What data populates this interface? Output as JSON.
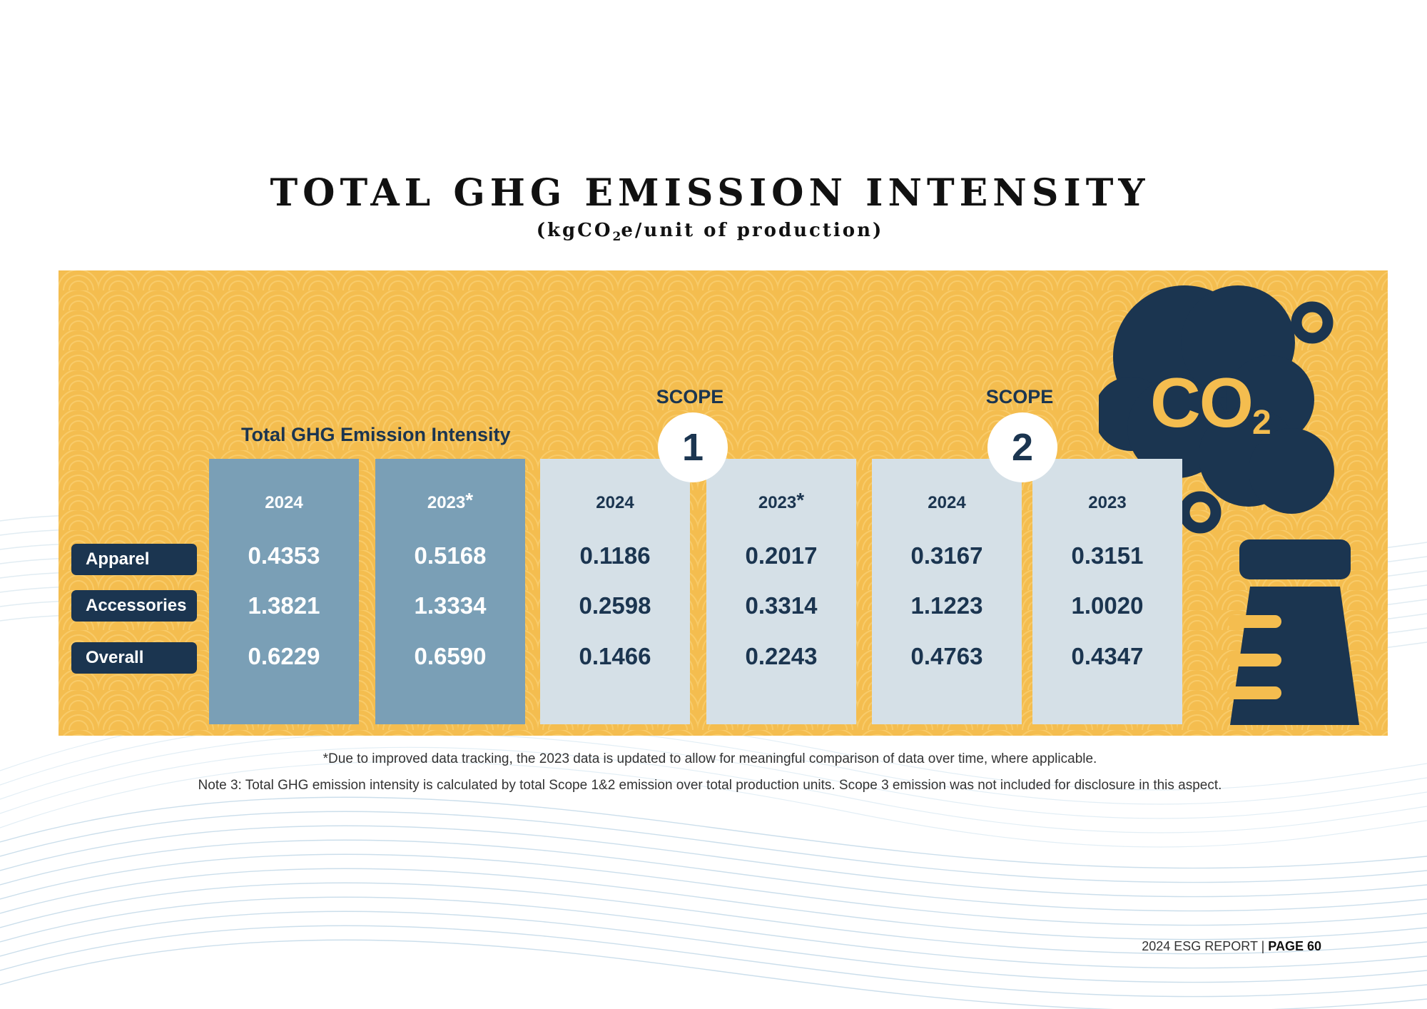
{
  "page": {
    "title": "TOTAL GHG EMISSION INTENSITY",
    "subtitle_prefix": "(kgCO",
    "subtitle_sub": "2",
    "subtitle_suffix": "e/unit of production)"
  },
  "table": {
    "heading": "Total GHG Emission Intensity",
    "row_labels": [
      "Apparel",
      "Accessories",
      "Overall"
    ],
    "scopes": [
      {
        "label": "SCOPE",
        "number": "1"
      },
      {
        "label": "SCOPE",
        "number": "2"
      }
    ],
    "columns": [
      {
        "group": "total",
        "year": "2024",
        "star": "",
        "values": [
          "0.4353",
          "1.3821",
          "0.6229"
        ]
      },
      {
        "group": "total",
        "year": "2023",
        "star": "*",
        "values": [
          "0.5168",
          "1.3334",
          "0.6590"
        ]
      },
      {
        "group": "scope1",
        "year": "2024",
        "star": "",
        "values": [
          "0.1186",
          "0.2598",
          "0.1466"
        ]
      },
      {
        "group": "scope1",
        "year": "2023",
        "star": "*",
        "values": [
          "0.2017",
          "0.3314",
          "0.2243"
        ]
      },
      {
        "group": "scope2",
        "year": "2024",
        "star": "",
        "values": [
          "0.3167",
          "1.1223",
          "0.4763"
        ]
      },
      {
        "group": "scope2",
        "year": "2023",
        "star": "",
        "values": [
          "0.3151",
          "1.0020",
          "0.4347"
        ]
      }
    ]
  },
  "graphic": {
    "icon": "co2-factory-cloud-icon",
    "text": "CO",
    "sub": "2",
    "colors": {
      "panel": "#f4bd4f",
      "navy": "#1b3550",
      "total_column": "#7a9fb6",
      "scope_column": "#d5e0e7"
    }
  },
  "notes": [
    "*Due to improved data tracking, the 2023 data is updated to allow for meaningful comparison of data over time, where applicable.",
    "Note 3: Total GHG emission intensity is calculated by total Scope 1&2 emission over total production units. Scope 3 emission was not included for disclosure in this aspect."
  ],
  "footer": {
    "report": "2024 ESG REPORT | ",
    "page": "PAGE 60"
  }
}
